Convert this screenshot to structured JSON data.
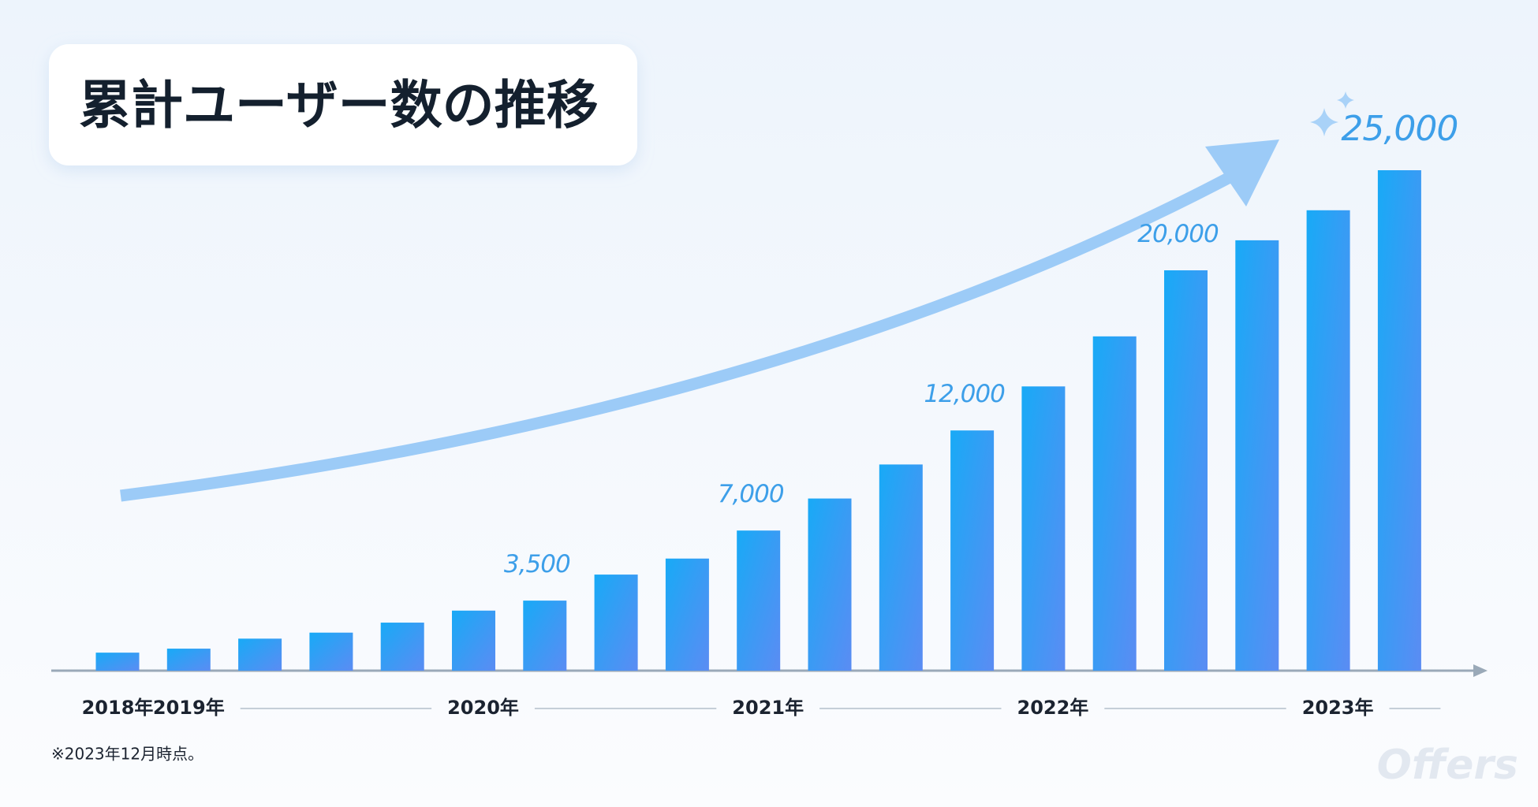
{
  "chart_data": {
    "type": "bar",
    "title": "累計ユーザー数の推移",
    "note": "※2023年12月時点。",
    "brand": "Offers",
    "categories": [
      "2018年",
      "2019年",
      null,
      null,
      null,
      "2020年",
      null,
      null,
      null,
      "2021年",
      null,
      null,
      null,
      "2022年",
      null,
      null,
      null,
      "2023年",
      null
    ],
    "values": [
      900,
      1100,
      1600,
      1900,
      2400,
      3000,
      3500,
      4800,
      5600,
      7000,
      8600,
      10300,
      12000,
      14200,
      16700,
      20000,
      21500,
      23000,
      25000
    ],
    "value_labels": [
      null,
      null,
      null,
      null,
      null,
      null,
      "3,500",
      null,
      null,
      "7,000",
      null,
      null,
      "12,000",
      null,
      null,
      "20,000",
      null,
      null,
      "25,000"
    ],
    "color": "#18aaf6"
  }
}
